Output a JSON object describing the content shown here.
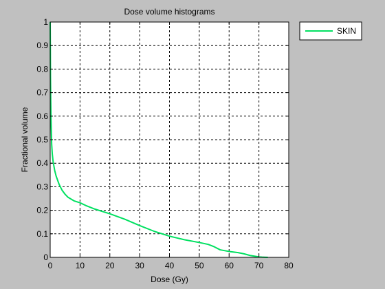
{
  "figure": {
    "background_color": "#c0c0c0"
  },
  "chart_data": {
    "type": "line",
    "title": "Dose volume histograms",
    "xlabel": "Dose (Gy)",
    "ylabel": "Fractional volume",
    "xlim": [
      0,
      80
    ],
    "ylim": [
      0,
      1
    ],
    "xticks": [
      0,
      10,
      20,
      30,
      40,
      50,
      60,
      70,
      80
    ],
    "yticks": [
      0,
      0.1,
      0.2,
      0.3,
      0.4,
      0.5,
      0.6,
      0.7,
      0.8,
      0.9,
      1
    ],
    "xtick_labels": [
      "0",
      "10",
      "20",
      "30",
      "40",
      "50",
      "60",
      "70",
      "80"
    ],
    "ytick_labels": [
      "0",
      "0.1",
      "0.2",
      "0.3",
      "0.4",
      "0.5",
      "0.6",
      "0.7",
      "0.8",
      "0.9",
      "1"
    ],
    "grid": true,
    "legend_position": "outside-top-right",
    "series": [
      {
        "name": "SKIN",
        "color": "#00e060",
        "x": [
          0,
          0.05,
          0.1,
          0.2,
          0.3,
          0.5,
          0.7,
          1.0,
          1.5,
          2,
          3,
          4,
          5,
          6,
          8,
          10,
          12,
          15,
          20,
          25,
          30,
          35,
          40,
          45,
          50,
          53,
          55,
          57,
          60,
          63,
          65,
          67,
          69,
          70,
          71,
          72,
          73
        ],
        "y": [
          1.0,
          0.9,
          0.77,
          0.66,
          0.58,
          0.48,
          0.44,
          0.405,
          0.37,
          0.345,
          0.31,
          0.285,
          0.268,
          0.255,
          0.24,
          0.232,
          0.22,
          0.205,
          0.185,
          0.162,
          0.135,
          0.11,
          0.09,
          0.075,
          0.063,
          0.055,
          0.045,
          0.032,
          0.025,
          0.02,
          0.015,
          0.008,
          0.004,
          0.002,
          0.001,
          0.0005,
          0
        ]
      }
    ]
  }
}
